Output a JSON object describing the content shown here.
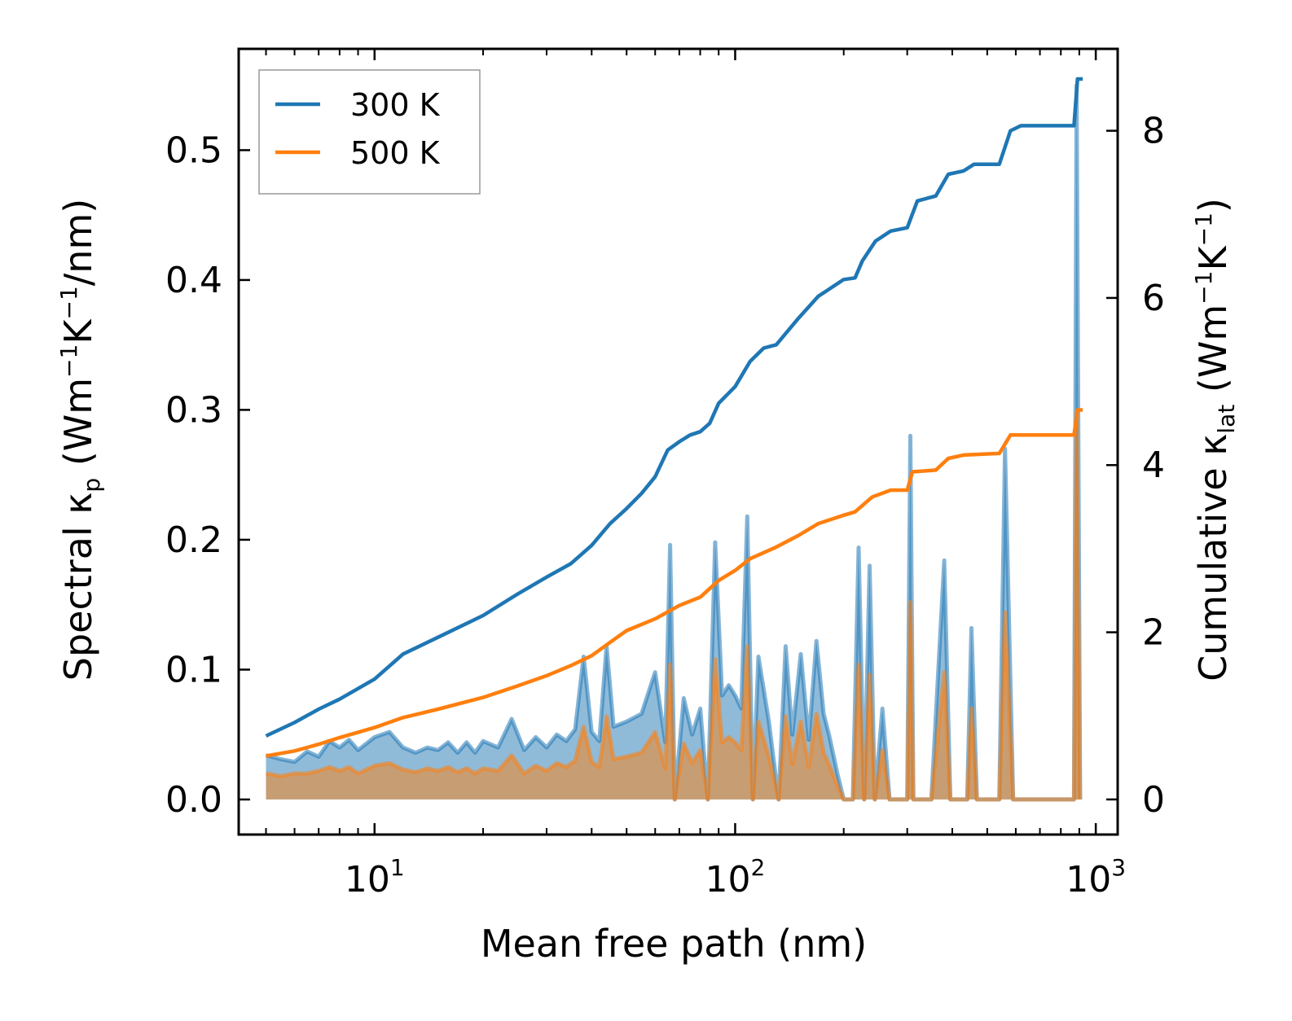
{
  "chart_data": {
    "type": "line",
    "xscale": "log",
    "xlabel": "Mean free path (nm)",
    "ylabel_left": {
      "main": "Spectral κ",
      "sub": "p",
      "unit_a": " (Wm",
      "sup1": "−1",
      "unit_b": "K",
      "sup2": "−1",
      "unit_c": "/nm)"
    },
    "ylabel_right": {
      "main": "Cumulative κ",
      "sub": "lat",
      "unit_a": " (Wm",
      "sup1": "−1",
      "unit_b": "K",
      "sup2": "−1",
      "unit_c": ")"
    },
    "xlim": [
      4.2,
      1150
    ],
    "ylim_left": [
      -0.027,
      0.578
    ],
    "ylim_right": [
      -0.42,
      8.98
    ],
    "x_ticks": [
      {
        "base": "10",
        "exp": "1",
        "value": 10
      },
      {
        "base": "10",
        "exp": "2",
        "value": 100
      },
      {
        "base": "10",
        "exp": "3",
        "value": 1000
      }
    ],
    "y_ticks_left": [
      "0.0",
      "0.1",
      "0.2",
      "0.3",
      "0.4",
      "0.5"
    ],
    "y_ticks_right": [
      "0",
      "2",
      "4",
      "6",
      "8"
    ],
    "legend": {
      "location": "upper-left",
      "entries": [
        {
          "label": "300 K",
          "color": "#1f77b4"
        },
        {
          "label": "500 K",
          "color": "#ff7f0e"
        }
      ]
    },
    "cumulative": [
      {
        "name": "300 K",
        "color": "#1f77b4",
        "points": [
          [
            5,
            0.76
          ],
          [
            6,
            0.92
          ],
          [
            7,
            1.08
          ],
          [
            8,
            1.2
          ],
          [
            10,
            1.44
          ],
          [
            12,
            1.74
          ],
          [
            15,
            1.94
          ],
          [
            20,
            2.2
          ],
          [
            25,
            2.46
          ],
          [
            30,
            2.66
          ],
          [
            35,
            2.82
          ],
          [
            40,
            3.04
          ],
          [
            45,
            3.3
          ],
          [
            50,
            3.48
          ],
          [
            55,
            3.66
          ],
          [
            60,
            3.86
          ],
          [
            65,
            4.18
          ],
          [
            70,
            4.28
          ],
          [
            75,
            4.36
          ],
          [
            80,
            4.4
          ],
          [
            85,
            4.5
          ],
          [
            90,
            4.74
          ],
          [
            100,
            4.94
          ],
          [
            110,
            5.24
          ],
          [
            120,
            5.4
          ],
          [
            130,
            5.44
          ],
          [
            150,
            5.76
          ],
          [
            170,
            6.02
          ],
          [
            200,
            6.22
          ],
          [
            215,
            6.24
          ],
          [
            225,
            6.44
          ],
          [
            245,
            6.68
          ],
          [
            270,
            6.8
          ],
          [
            300,
            6.84
          ],
          [
            320,
            7.16
          ],
          [
            360,
            7.22
          ],
          [
            390,
            7.48
          ],
          [
            430,
            7.52
          ],
          [
            460,
            7.6
          ],
          [
            540,
            7.6
          ],
          [
            580,
            8.0
          ],
          [
            620,
            8.06
          ],
          [
            870,
            8.06
          ],
          [
            890,
            8.62
          ],
          [
            920,
            8.62
          ]
        ]
      },
      {
        "name": "500 K",
        "color": "#ff7f0e",
        "points": [
          [
            5,
            0.52
          ],
          [
            6,
            0.58
          ],
          [
            7,
            0.66
          ],
          [
            8,
            0.74
          ],
          [
            10,
            0.86
          ],
          [
            12,
            0.98
          ],
          [
            15,
            1.08
          ],
          [
            20,
            1.22
          ],
          [
            25,
            1.36
          ],
          [
            30,
            1.48
          ],
          [
            35,
            1.6
          ],
          [
            40,
            1.72
          ],
          [
            45,
            1.88
          ],
          [
            50,
            2.02
          ],
          [
            60,
            2.16
          ],
          [
            70,
            2.32
          ],
          [
            80,
            2.42
          ],
          [
            90,
            2.62
          ],
          [
            100,
            2.74
          ],
          [
            110,
            2.88
          ],
          [
            130,
            3.02
          ],
          [
            150,
            3.16
          ],
          [
            170,
            3.3
          ],
          [
            200,
            3.4
          ],
          [
            215,
            3.44
          ],
          [
            240,
            3.62
          ],
          [
            270,
            3.7
          ],
          [
            300,
            3.7
          ],
          [
            310,
            3.92
          ],
          [
            360,
            3.94
          ],
          [
            390,
            4.08
          ],
          [
            430,
            4.12
          ],
          [
            540,
            4.14
          ],
          [
            580,
            4.36
          ],
          [
            870,
            4.36
          ],
          [
            890,
            4.66
          ],
          [
            920,
            4.66
          ]
        ]
      }
    ],
    "spectral": [
      {
        "name": "300 K",
        "color": "#1f77b4",
        "points": [
          [
            5,
            0.034
          ],
          [
            5.5,
            0.031
          ],
          [
            6,
            0.029
          ],
          [
            6.5,
            0.037
          ],
          [
            7,
            0.033
          ],
          [
            7.5,
            0.045
          ],
          [
            8,
            0.04
          ],
          [
            8.5,
            0.046
          ],
          [
            9,
            0.038
          ],
          [
            10,
            0.048
          ],
          [
            11,
            0.052
          ],
          [
            12,
            0.04
          ],
          [
            13,
            0.036
          ],
          [
            14,
            0.04
          ],
          [
            15,
            0.038
          ],
          [
            16,
            0.044
          ],
          [
            17,
            0.036
          ],
          [
            18,
            0.044
          ],
          [
            19,
            0.036
          ],
          [
            20,
            0.045
          ],
          [
            22,
            0.04
          ],
          [
            24,
            0.062
          ],
          [
            26,
            0.038
          ],
          [
            28,
            0.048
          ],
          [
            30,
            0.04
          ],
          [
            32,
            0.05
          ],
          [
            34,
            0.045
          ],
          [
            36,
            0.054
          ],
          [
            38,
            0.11
          ],
          [
            40,
            0.052
          ],
          [
            42,
            0.045
          ],
          [
            44,
            0.118
          ],
          [
            46,
            0.056
          ],
          [
            50,
            0.06
          ],
          [
            55,
            0.066
          ],
          [
            60,
            0.098
          ],
          [
            64,
            0.044
          ],
          [
            66,
            0.196
          ],
          [
            68,
            0.0
          ],
          [
            72,
            0.078
          ],
          [
            76,
            0.05
          ],
          [
            80,
            0.07
          ],
          [
            84,
            0.0
          ],
          [
            88,
            0.198
          ],
          [
            92,
            0.08
          ],
          [
            96,
            0.088
          ],
          [
            100,
            0.08
          ],
          [
            104,
            0.07
          ],
          [
            108,
            0.218
          ],
          [
            112,
            0.0
          ],
          [
            116,
            0.11
          ],
          [
            124,
            0.06
          ],
          [
            132,
            0.0
          ],
          [
            138,
            0.118
          ],
          [
            144,
            0.05
          ],
          [
            152,
            0.112
          ],
          [
            160,
            0.046
          ],
          [
            168,
            0.122
          ],
          [
            176,
            0.066
          ],
          [
            182,
            0.05
          ],
          [
            192,
            0.02
          ],
          [
            200,
            0.0
          ],
          [
            212,
            0.0
          ],
          [
            220,
            0.194
          ],
          [
            228,
            0.0
          ],
          [
            236,
            0.18
          ],
          [
            244,
            0.0
          ],
          [
            256,
            0.07
          ],
          [
            268,
            0.0
          ],
          [
            300,
            0.0
          ],
          [
            306,
            0.28
          ],
          [
            312,
            0.0
          ],
          [
            350,
            0.0
          ],
          [
            380,
            0.184
          ],
          [
            395,
            0.0
          ],
          [
            440,
            0.0
          ],
          [
            452,
            0.132
          ],
          [
            468,
            0.0
          ],
          [
            540,
            0.0
          ],
          [
            560,
            0.27
          ],
          [
            590,
            0.0
          ],
          [
            870,
            0.0
          ],
          [
            885,
            0.55
          ],
          [
            905,
            0.0
          ]
        ]
      },
      {
        "name": "500 K",
        "color": "#ff7f0e",
        "points": [
          [
            5,
            0.02
          ],
          [
            5.5,
            0.018
          ],
          [
            6,
            0.02
          ],
          [
            6.5,
            0.02
          ],
          [
            7,
            0.022
          ],
          [
            7.5,
            0.025
          ],
          [
            8,
            0.022
          ],
          [
            8.5,
            0.025
          ],
          [
            9,
            0.02
          ],
          [
            10,
            0.026
          ],
          [
            11,
            0.028
          ],
          [
            12,
            0.023
          ],
          [
            13,
            0.021
          ],
          [
            14,
            0.024
          ],
          [
            15,
            0.022
          ],
          [
            16,
            0.025
          ],
          [
            17,
            0.021
          ],
          [
            18,
            0.024
          ],
          [
            19,
            0.02
          ],
          [
            20,
            0.024
          ],
          [
            22,
            0.022
          ],
          [
            24,
            0.034
          ],
          [
            26,
            0.02
          ],
          [
            28,
            0.026
          ],
          [
            30,
            0.022
          ],
          [
            32,
            0.028
          ],
          [
            34,
            0.025
          ],
          [
            36,
            0.03
          ],
          [
            38,
            0.056
          ],
          [
            40,
            0.029
          ],
          [
            42,
            0.025
          ],
          [
            44,
            0.064
          ],
          [
            46,
            0.031
          ],
          [
            50,
            0.033
          ],
          [
            55,
            0.036
          ],
          [
            60,
            0.052
          ],
          [
            64,
            0.024
          ],
          [
            66,
            0.104
          ],
          [
            68,
            0.0
          ],
          [
            72,
            0.043
          ],
          [
            76,
            0.028
          ],
          [
            80,
            0.038
          ],
          [
            84,
            0.0
          ],
          [
            88,
            0.108
          ],
          [
            92,
            0.044
          ],
          [
            96,
            0.048
          ],
          [
            100,
            0.044
          ],
          [
            104,
            0.038
          ],
          [
            108,
            0.118
          ],
          [
            112,
            0.0
          ],
          [
            116,
            0.06
          ],
          [
            124,
            0.033
          ],
          [
            132,
            0.0
          ],
          [
            138,
            0.064
          ],
          [
            144,
            0.027
          ],
          [
            152,
            0.06
          ],
          [
            160,
            0.025
          ],
          [
            168,
            0.066
          ],
          [
            176,
            0.036
          ],
          [
            182,
            0.027
          ],
          [
            192,
            0.011
          ],
          [
            200,
            0.0
          ],
          [
            212,
            0.0
          ],
          [
            220,
            0.104
          ],
          [
            228,
            0.0
          ],
          [
            236,
            0.096
          ],
          [
            244,
            0.0
          ],
          [
            256,
            0.038
          ],
          [
            268,
            0.0
          ],
          [
            300,
            0.0
          ],
          [
            306,
            0.152
          ],
          [
            312,
            0.0
          ],
          [
            350,
            0.0
          ],
          [
            380,
            0.098
          ],
          [
            395,
            0.0
          ],
          [
            440,
            0.0
          ],
          [
            452,
            0.07
          ],
          [
            468,
            0.0
          ],
          [
            540,
            0.0
          ],
          [
            560,
            0.144
          ],
          [
            590,
            0.0
          ],
          [
            870,
            0.0
          ],
          [
            885,
            0.298
          ],
          [
            905,
            0.0
          ]
        ]
      }
    ]
  }
}
